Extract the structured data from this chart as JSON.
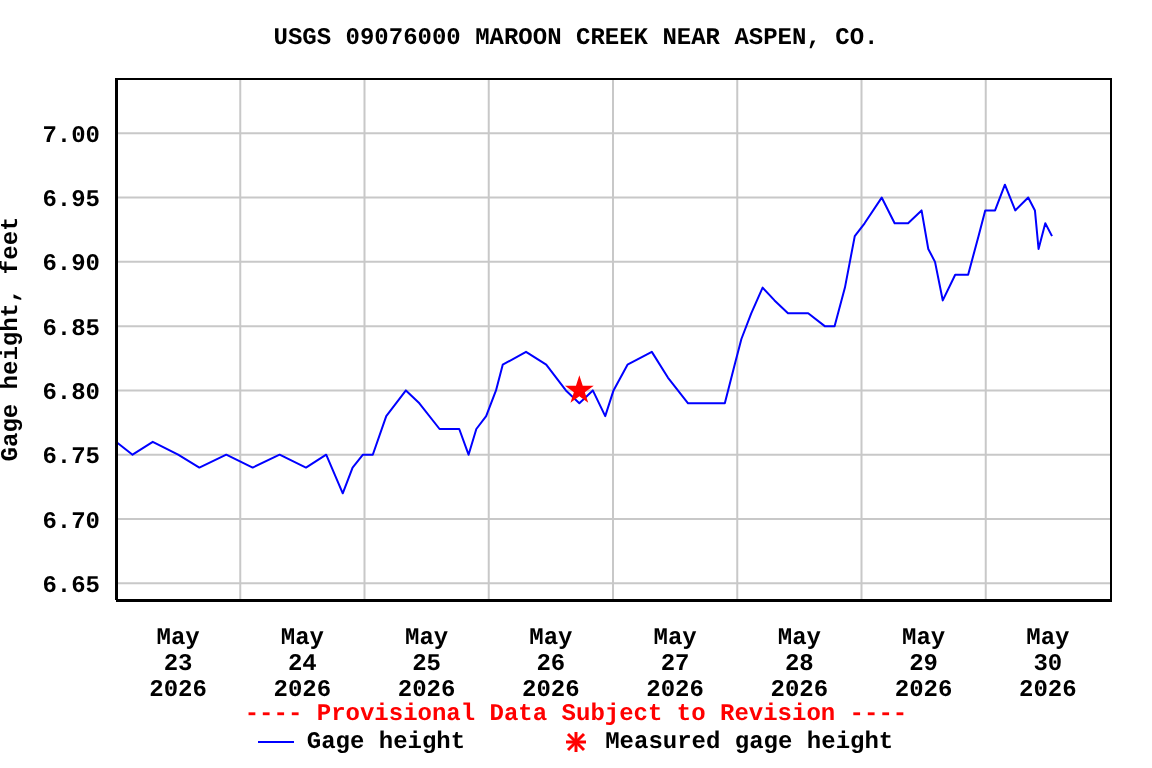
{
  "chart_data": {
    "type": "line",
    "title": "USGS 09076000 MAROON CREEK NEAR ASPEN, CO.",
    "ylabel": "Gage height, feet",
    "xlim": [
      "2026-05-23T00:00",
      "2026-05-31T00:00"
    ],
    "xticks": [
      {
        "value": "2026-05-23T12:00",
        "label": "May\n23\n2026"
      },
      {
        "value": "2026-05-24T00:00",
        "label": null
      },
      {
        "value": "2026-05-24T12:00",
        "label": "May\n24\n2026"
      },
      {
        "value": "2026-05-25T00:00",
        "label": null
      },
      {
        "value": "2026-05-25T12:00",
        "label": "May\n25\n2026"
      },
      {
        "value": "2026-05-26T00:00",
        "label": null
      },
      {
        "value": "2026-05-26T12:00",
        "label": "May\n26\n2026"
      },
      {
        "value": "2026-05-27T00:00",
        "label": null
      },
      {
        "value": "2026-05-27T12:00",
        "label": "May\n27\n2026"
      },
      {
        "value": "2026-05-28T00:00",
        "label": null
      },
      {
        "value": "2026-05-28T12:00",
        "label": "May\n28\n2026"
      },
      {
        "value": "2026-05-29T00:00",
        "label": null
      },
      {
        "value": "2026-05-29T12:00",
        "label": "May\n29\n2026"
      },
      {
        "value": "2026-05-30T00:00",
        "label": null
      },
      {
        "value": "2026-05-30T12:00",
        "label": "May\n30\n2026"
      }
    ],
    "ylim": [
      6.637,
      7.043
    ],
    "yticks": [
      {
        "value": 6.65,
        "label": "6.65"
      },
      {
        "value": 6.7,
        "label": "6.70"
      },
      {
        "value": 6.75,
        "label": "6.75"
      },
      {
        "value": 6.8,
        "label": "6.80"
      },
      {
        "value": 6.85,
        "label": "6.85"
      },
      {
        "value": 6.9,
        "label": "6.90"
      },
      {
        "value": 6.95,
        "label": "6.95"
      },
      {
        "value": 7,
        "label": "7.00"
      }
    ],
    "grid": true,
    "legend": "bottom",
    "annotations": [
      "---- Provisional Data Subject to Revision ----"
    ],
    "series": [
      {
        "name": "Gage height",
        "color": "#0000ff",
        "marker": "none",
        "line_style": "solid",
        "x": [
          "2026-05-23T00:00",
          "2026-05-23T03:12",
          "2026-05-23T07:06",
          "2026-05-23T12:00",
          "2026-05-23T16:06",
          "2026-05-23T21:18",
          "2026-05-24T02:24",
          "2026-05-24T07:36",
          "2026-05-24T12:42",
          "2026-05-24T16:36",
          "2026-05-24T19:48",
          "2026-05-24T21:42",
          "2026-05-24T23:42",
          "2026-05-25T01:36",
          "2026-05-25T04:12",
          "2026-05-25T08:00",
          "2026-05-25T10:36",
          "2026-05-25T14:30",
          "2026-05-25T18:18",
          "2026-05-25T20:06",
          "2026-05-25T21:36",
          "2026-05-25T23:30",
          "2026-05-26T01:24",
          "2026-05-26T02:42",
          "2026-05-26T07:12",
          "2026-05-26T11:06",
          "2026-05-26T14:54",
          "2026-05-26T17:30",
          "2026-05-26T20:06",
          "2026-05-26T22:30",
          "2026-05-27T00:06",
          "2026-05-27T02:48",
          "2026-05-27T07:30",
          "2026-05-27T10:36",
          "2026-05-27T14:30",
          "2026-05-27T18:18",
          "2026-05-27T21:36",
          "2026-05-27T23:30",
          "2026-05-28T00:48",
          "2026-05-28T02:42",
          "2026-05-28T04:54",
          "2026-05-28T07:12",
          "2026-05-28T09:48",
          "2026-05-28T13:42",
          "2026-05-28T16:54",
          "2026-05-28T18:48",
          "2026-05-28T20:48",
          "2026-05-28T22:42",
          "2026-05-29T00:36",
          "2026-05-29T03:54",
          "2026-05-29T06:24",
          "2026-05-29T09:00",
          "2026-05-29T11:36",
          "2026-05-29T12:54",
          "2026-05-29T14:12",
          "2026-05-29T15:42",
          "2026-05-29T18:06",
          "2026-05-29T20:36",
          "2026-05-29T22:36",
          "2026-05-29T23:54",
          "2026-05-30T01:48",
          "2026-05-30T03:42",
          "2026-05-30T05:42",
          "2026-05-30T08:12",
          "2026-05-30T09:30",
          "2026-05-30T10:12",
          "2026-05-30T11:30",
          "2026-05-30T12:48"
        ],
        "values": [
          6.76,
          6.75,
          6.76,
          6.75,
          6.74,
          6.75,
          6.74,
          6.75,
          6.74,
          6.75,
          6.72,
          6.74,
          6.75,
          6.75,
          6.78,
          6.8,
          6.79,
          6.77,
          6.77,
          6.75,
          6.77,
          6.78,
          6.8,
          6.82,
          6.83,
          6.82,
          6.8,
          6.79,
          6.8,
          6.78,
          6.8,
          6.82,
          6.83,
          6.81,
          6.79,
          6.79,
          6.79,
          6.82,
          6.84,
          6.86,
          6.88,
          6.87,
          6.86,
          6.86,
          6.85,
          6.85,
          6.88,
          6.92,
          6.93,
          6.95,
          6.93,
          6.93,
          6.94,
          6.91,
          6.9,
          6.87,
          6.89,
          6.89,
          6.92,
          6.94,
          6.94,
          6.96,
          6.94,
          6.95,
          6.94,
          6.91,
          6.93,
          6.92
        ]
      },
      {
        "name": "Measured gage height",
        "type": "scatter",
        "color": "#ff0000",
        "marker": "star",
        "x": [
          "2026-05-26T17:30"
        ],
        "values": [
          6.8
        ]
      }
    ]
  }
}
